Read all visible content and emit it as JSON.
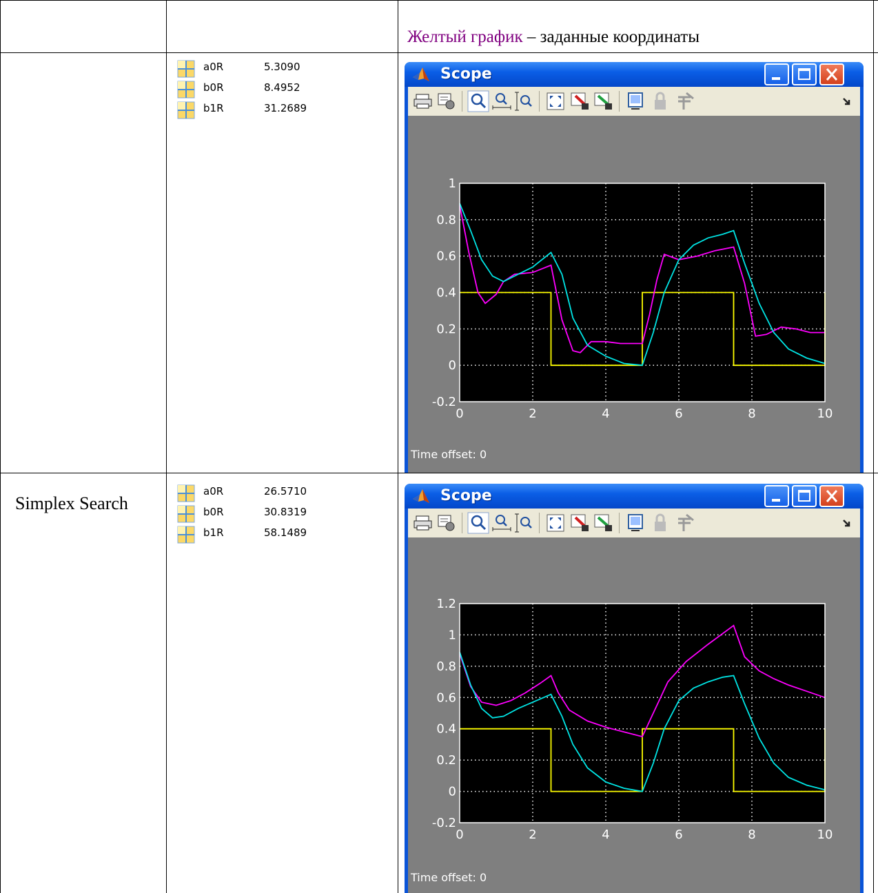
{
  "header": {
    "highlight": "Желтый график",
    "rest": " – заданные координаты",
    "highlight_color": "#800080"
  },
  "rows": [
    {
      "method": "",
      "params": [
        {
          "name": "a0R",
          "value": "5.3090"
        },
        {
          "name": "b0R",
          "value": "8.4952"
        },
        {
          "name": "b1R",
          "value": "31.2689"
        }
      ],
      "scope": {
        "title": "Scope",
        "time_offset_label": "Time offset:",
        "time_offset_value": "0"
      }
    },
    {
      "method": "Simplex Search",
      "params": [
        {
          "name": "a0R",
          "value": "26.5710"
        },
        {
          "name": "b0R",
          "value": "30.8319"
        },
        {
          "name": "b1R",
          "value": "58.1489"
        }
      ],
      "scope": {
        "title": "Scope",
        "time_offset_label": "Time offset:",
        "time_offset_value": "0"
      }
    }
  ],
  "toolbar_icons": [
    "print-icon",
    "parameters-icon",
    "zoom-icon",
    "zoom-x-icon",
    "zoom-y-icon",
    "autoscale-icon",
    "save-axes-icon",
    "restore-axes-icon",
    "floating-scope-icon",
    "lock-icon",
    "signal-selector-icon",
    "overflow-arrow-icon"
  ],
  "colors": {
    "reference": "#ffff00",
    "output_cyan": "#00e5e5",
    "output_magenta": "#ff00ff",
    "plot_bg": "#000000",
    "frame_bg": "#7f7f7f",
    "title_blue": "#0a54d8"
  },
  "chart_data": [
    {
      "type": "line",
      "xlim": [
        0,
        10
      ],
      "ylim": [
        -0.2,
        1
      ],
      "xticks": [
        "0",
        "2",
        "4",
        "6",
        "8",
        "10"
      ],
      "yticks": [
        "-0.2",
        "0",
        "0.2",
        "0.4",
        "0.6",
        "0.8",
        "1"
      ],
      "grid": true,
      "series": [
        {
          "color": "#ffff00",
          "x": [
            0,
            2.5,
            2.5,
            5,
            5,
            7.5,
            7.5,
            10,
            10
          ],
          "y": [
            0.4,
            0.4,
            0,
            0,
            0.4,
            0.4,
            0,
            0,
            0.4
          ]
        },
        {
          "color": "#ff00ff",
          "x": [
            0,
            0.25,
            0.5,
            0.7,
            1,
            1.2,
            1.5,
            2,
            2.5,
            2.8,
            3.1,
            3.3,
            3.6,
            4,
            4.4,
            5,
            5.2,
            5.4,
            5.6,
            6,
            6.5,
            7,
            7.5,
            7.8,
            8.1,
            8.4,
            8.8,
            9.2,
            9.6,
            10
          ],
          "y": [
            0.88,
            0.62,
            0.4,
            0.34,
            0.39,
            0.46,
            0.5,
            0.51,
            0.55,
            0.25,
            0.08,
            0.07,
            0.13,
            0.13,
            0.12,
            0.12,
            0.28,
            0.47,
            0.61,
            0.58,
            0.6,
            0.63,
            0.65,
            0.45,
            0.16,
            0.17,
            0.21,
            0.2,
            0.18,
            0.18
          ]
        },
        {
          "color": "#00e5e5",
          "x": [
            0,
            0.3,
            0.6,
            0.9,
            1.2,
            1.5,
            2,
            2.5,
            2.8,
            3.1,
            3.5,
            4,
            4.5,
            5,
            5.3,
            5.6,
            6,
            6.4,
            6.8,
            7.2,
            7.5,
            7.8,
            8.2,
            8.6,
            9,
            9.5,
            10
          ],
          "y": [
            0.89,
            0.74,
            0.58,
            0.49,
            0.46,
            0.49,
            0.54,
            0.62,
            0.5,
            0.26,
            0.11,
            0.05,
            0.01,
            0,
            0.18,
            0.4,
            0.58,
            0.66,
            0.7,
            0.72,
            0.74,
            0.56,
            0.34,
            0.18,
            0.09,
            0.04,
            0.01
          ]
        }
      ]
    },
    {
      "type": "line",
      "xlim": [
        0,
        10
      ],
      "ylim": [
        -0.2,
        1.2
      ],
      "xticks": [
        "0",
        "2",
        "4",
        "6",
        "8",
        "10"
      ],
      "yticks": [
        "-0.2",
        "0",
        "0.2",
        "0.4",
        "0.6",
        "0.8",
        "1",
        "1.2"
      ],
      "grid": true,
      "series": [
        {
          "color": "#ffff00",
          "x": [
            0,
            2.5,
            2.5,
            5,
            5,
            7.5,
            7.5,
            10,
            10
          ],
          "y": [
            0.4,
            0.4,
            0,
            0,
            0.4,
            0.4,
            0,
            0,
            0.4
          ]
        },
        {
          "color": "#ff00ff",
          "x": [
            0,
            0.3,
            0.6,
            1,
            1.4,
            1.8,
            2.2,
            2.5,
            2.7,
            3,
            3.5,
            4,
            4.5,
            5,
            5.3,
            5.7,
            6.2,
            6.8,
            7.5,
            7.8,
            8.2,
            8.6,
            9,
            9.5,
            10
          ],
          "y": [
            0.88,
            0.67,
            0.57,
            0.55,
            0.58,
            0.63,
            0.69,
            0.74,
            0.63,
            0.52,
            0.45,
            0.41,
            0.38,
            0.35,
            0.5,
            0.7,
            0.83,
            0.94,
            1.06,
            0.86,
            0.77,
            0.72,
            0.68,
            0.64,
            0.6
          ]
        },
        {
          "color": "#00e5e5",
          "x": [
            0,
            0.3,
            0.6,
            0.9,
            1.2,
            1.6,
            2,
            2.5,
            2.8,
            3.1,
            3.5,
            4,
            4.5,
            5,
            5.3,
            5.6,
            6,
            6.4,
            6.8,
            7.2,
            7.5,
            7.8,
            8.2,
            8.6,
            9,
            9.5,
            10
          ],
          "y": [
            0.89,
            0.68,
            0.53,
            0.47,
            0.48,
            0.53,
            0.57,
            0.62,
            0.48,
            0.3,
            0.15,
            0.06,
            0.02,
            0,
            0.18,
            0.4,
            0.58,
            0.66,
            0.7,
            0.73,
            0.74,
            0.56,
            0.34,
            0.18,
            0.09,
            0.04,
            0.01
          ]
        }
      ]
    }
  ]
}
